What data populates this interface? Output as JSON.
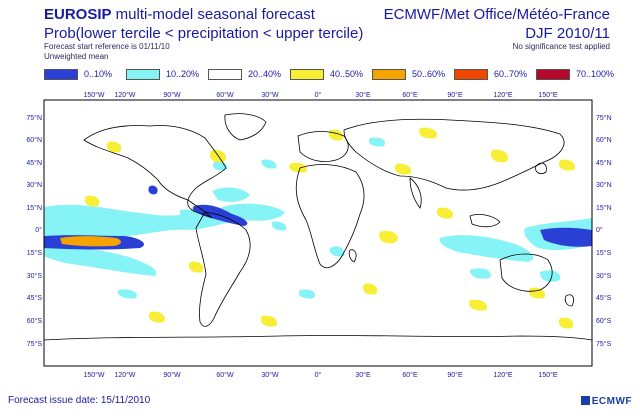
{
  "header": {
    "title_bold": "EUROSIP",
    "title_rest": " multi-model seasonal forecast",
    "subtitle": "Prob(lower tercile < precipitation < upper tercile)",
    "start_reference": "Forecast start reference is 01/11/10",
    "weighting": "Unweighted mean",
    "centres": "ECMWF/Met Office/Météo-France",
    "season": "DJF 2010/11",
    "significance": "No significance test applied"
  },
  "legend": {
    "items": [
      {
        "label": "0..10%",
        "color": "#2a3fd6"
      },
      {
        "label": "10..20%",
        "color": "#86f3f6"
      },
      {
        "label": "20..40%",
        "color": "#ffffff"
      },
      {
        "label": "40..50%",
        "color": "#f7ee35"
      },
      {
        "label": "50..60%",
        "color": "#f5a300"
      },
      {
        "label": "60..70%",
        "color": "#ef4700"
      },
      {
        "label": "70..100%",
        "color": "#b5082a"
      }
    ]
  },
  "map": {
    "lon_ticks_top": [
      "150°W",
      "120°W",
      "90°W",
      "60°W",
      "30°W",
      "0°",
      "30°E",
      "60°E",
      "90°E",
      "120°E",
      "150°E"
    ],
    "lon_ticks_bottom": [
      "150°W",
      "120°W",
      "90°W",
      "60°W",
      "30°W",
      "0°",
      "30°E",
      "60°E",
      "90°E",
      "120°E",
      "150°E"
    ],
    "lat_ticks": [
      "75°N",
      "60°N",
      "45°N",
      "30°N",
      "15°N",
      "0°",
      "15°S",
      "30°S",
      "45°S",
      "60°S",
      "75°S"
    ]
  },
  "footer": {
    "issue_date": "Forecast issue date: 15/11/2010",
    "logo": "ECMWF"
  }
}
